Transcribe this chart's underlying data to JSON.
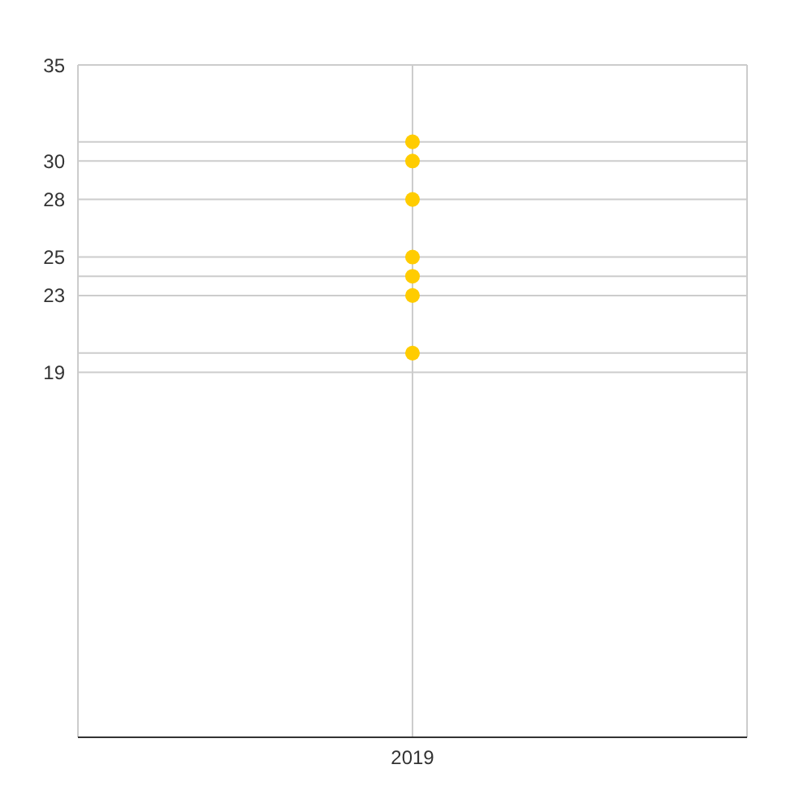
{
  "chart_data": {
    "type": "scatter",
    "categories": [
      "2019"
    ],
    "series": [
      {
        "color": "#ffcc00",
        "values": [
          31
        ]
      },
      {
        "color": "#ffcc00",
        "values": [
          30
        ]
      },
      {
        "color": "#ffcc00",
        "values": [
          28
        ]
      },
      {
        "color": "#ffcc00",
        "values": [
          25
        ]
      },
      {
        "color": "#ffcc00",
        "values": [
          24
        ]
      },
      {
        "color": "#ffcc00",
        "values": [
          23
        ]
      },
      {
        "color": "#ffcc00",
        "values": [
          20
        ]
      }
    ],
    "ylim": [
      0,
      35
    ],
    "yticks": [
      {
        "value": 19,
        "label": "19"
      },
      {
        "value": 20,
        "label": null
      },
      23,
      {
        "value": 24,
        "label": null
      },
      25,
      28,
      30,
      {
        "value": 31,
        "label": null
      },
      35
    ],
    "grid": true,
    "marker": "circle"
  }
}
